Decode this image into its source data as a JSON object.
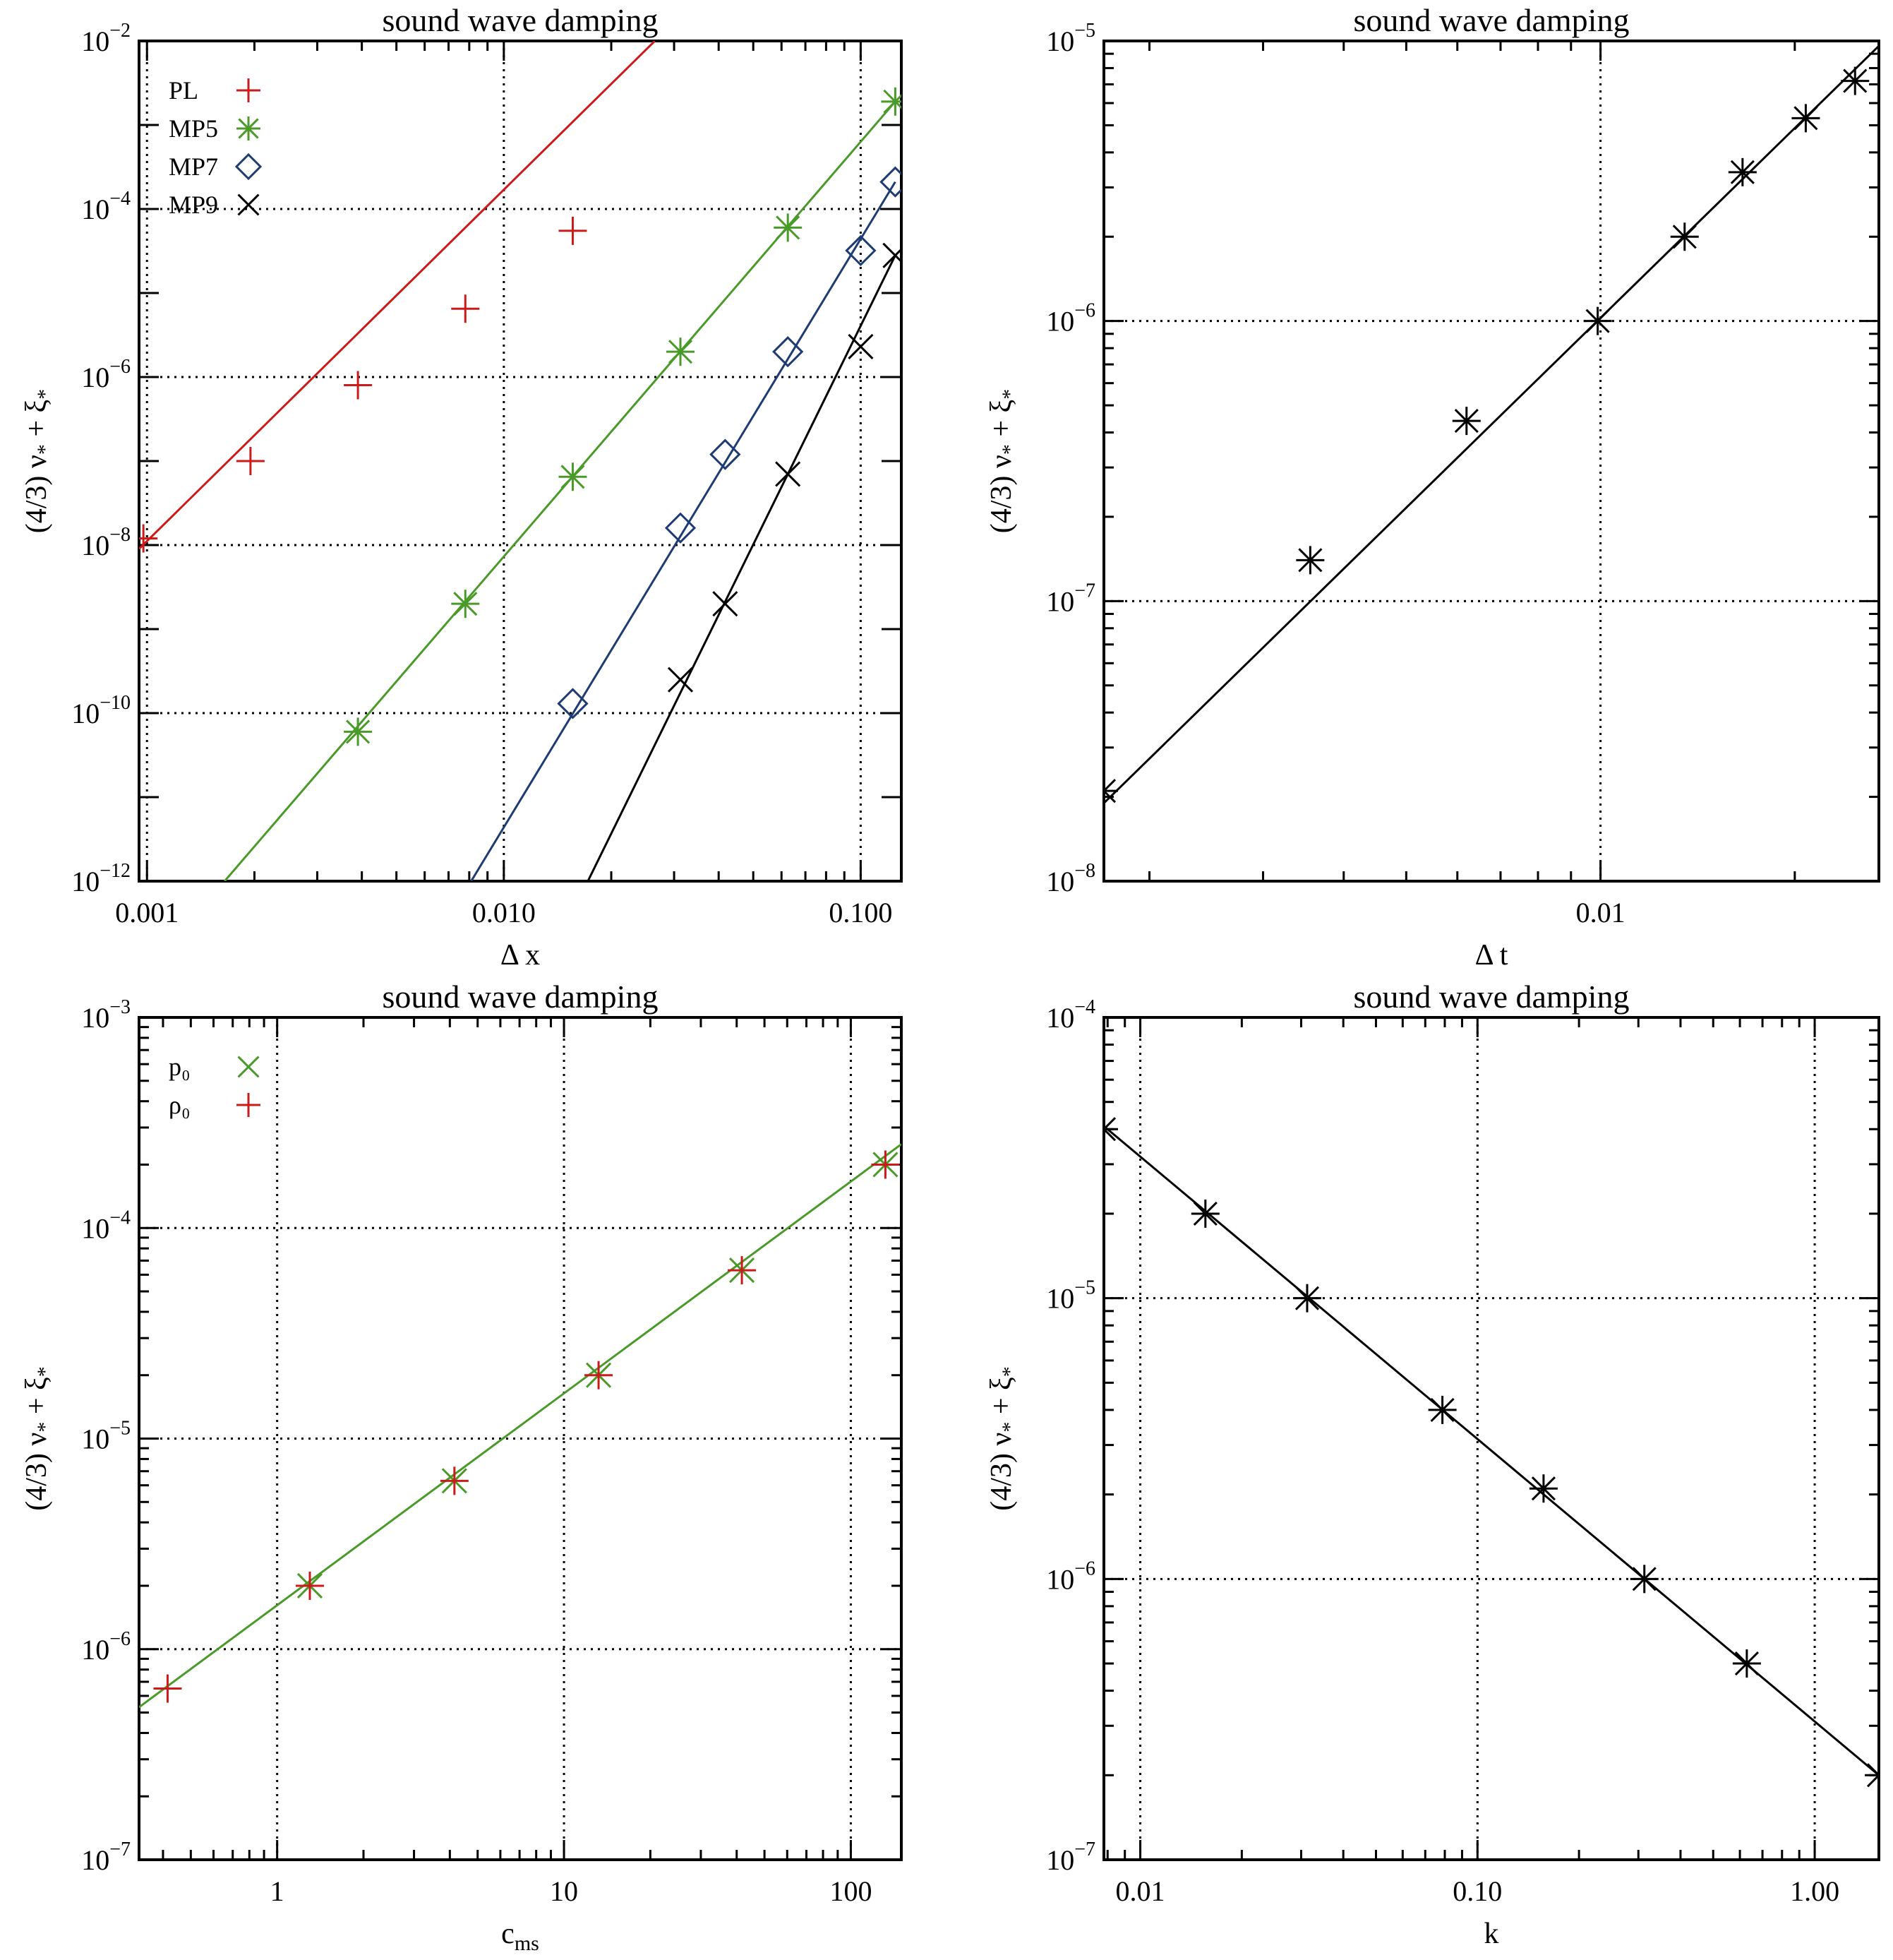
{
  "chart_data": [
    {
      "type": "scatter",
      "title": "sound wave damping",
      "xlabel": "Δ x",
      "ylabel": "(4/3) ν* + ξ*",
      "xscale": "log",
      "yscale": "log",
      "xlim": [
        0.00095,
        0.13
      ],
      "ylim": [
        1e-12,
        0.01
      ],
      "grid": true,
      "legend_position": "top-left",
      "xticks": [
        {
          "v": 0.001,
          "label": "0.001"
        },
        {
          "v": 0.01,
          "label": "0.010"
        },
        {
          "v": 0.1,
          "label": "0.100"
        }
      ],
      "yticks": [
        {
          "v": 0.01,
          "label": "10",
          "exp": "−2"
        },
        {
          "v": 0.0001,
          "label": "10",
          "exp": "−4"
        },
        {
          "v": 1e-06,
          "label": "10",
          "exp": "−6"
        },
        {
          "v": 1e-08,
          "label": "10",
          "exp": "−8"
        },
        {
          "v": 1e-10,
          "label": "10",
          "exp": "−10"
        },
        {
          "v": 1e-12,
          "label": "10",
          "exp": "−12"
        }
      ],
      "series": [
        {
          "name": "PL",
          "marker": "plus",
          "color": "#cc1a1a",
          "x": [
            0.000977,
            0.00195,
            0.0039,
            0.0078,
            0.0156
          ],
          "y": [
            1.2e-08,
            1e-07,
            8e-07,
            6.5e-06,
            5.5e-05
          ],
          "fit": [
            [
              0.00095,
              9e-09
            ],
            [
              0.0265,
              0.01
            ]
          ]
        },
        {
          "name": "MP5",
          "marker": "asterisk",
          "color": "#4a9a2a",
          "x": [
            0.0039,
            0.0078,
            0.0156,
            0.03125,
            0.0625,
            0.125
          ],
          "y": [
            6e-11,
            2e-09,
            6.5e-08,
            2e-06,
            6e-05,
            0.0019
          ],
          "fit": [
            [
              0.00165,
              1e-12
            ],
            [
              0.125,
              0.0019
            ]
          ]
        },
        {
          "name": "MP7",
          "marker": "diamond",
          "color": "#1f3b73",
          "x": [
            0.0156,
            0.03125,
            0.0417,
            0.0625,
            0.1,
            0.125
          ],
          "y": [
            1.3e-10,
            1.6e-08,
            1.2e-07,
            2e-06,
            3.2e-05,
            0.00021
          ],
          "fit": [
            [
              0.0081,
              1e-12
            ],
            [
              0.125,
              0.00021
            ]
          ]
        },
        {
          "name": "MP9",
          "marker": "x",
          "color": "#000000",
          "x": [
            0.03125,
            0.0417,
            0.0625,
            0.1,
            0.125
          ],
          "y": [
            2.5e-10,
            2e-09,
            7e-08,
            2.3e-06,
            2.8e-05
          ],
          "fit": [
            [
              0.0172,
              1e-12
            ],
            [
              0.125,
              2.8e-05
            ]
          ]
        }
      ]
    },
    {
      "type": "scatter",
      "title": "sound wave damping",
      "xlabel": "Δ t",
      "ylabel": "(4/3) ν* + ξ*",
      "xscale": "log",
      "yscale": "log",
      "xlim": [
        0.0017,
        0.027
      ],
      "ylim": [
        1e-08,
        1e-05
      ],
      "grid": true,
      "xticks": [
        {
          "v": 0.01,
          "label": "0.01"
        }
      ],
      "yticks": [
        {
          "v": 1e-05,
          "label": "10",
          "exp": "−5"
        },
        {
          "v": 1e-06,
          "label": "10",
          "exp": "−6"
        },
        {
          "v": 1e-07,
          "label": "10",
          "exp": "−7"
        },
        {
          "v": 1e-08,
          "label": "10",
          "exp": "−8"
        }
      ],
      "series": [
        {
          "marker": "asterisk",
          "color": "#000000",
          "x": [
            0.0017,
            0.00355,
            0.0062,
            0.0099,
            0.0135,
            0.0166,
            0.0208,
            0.0248
          ],
          "y": [
            2.1e-08,
            1.4e-07,
            4.4e-07,
            1e-06,
            2e-06,
            3.4e-06,
            5.3e-06,
            7.2e-06
          ],
          "fit": [
            [
              0.0017,
              1.9e-08
            ],
            [
              0.027,
              9.6e-06
            ]
          ]
        }
      ]
    },
    {
      "type": "scatter",
      "title": "sound wave damping",
      "xlabel": "c_ms",
      "ylabel": "(4/3) ν* + ξ*",
      "xscale": "log",
      "yscale": "log",
      "xlim": [
        0.33,
        150
      ],
      "ylim": [
        1e-07,
        0.001
      ],
      "grid": true,
      "legend_position": "top-left",
      "xticks": [
        {
          "v": 1,
          "label": "1"
        },
        {
          "v": 10,
          "label": "10"
        },
        {
          "v": 100,
          "label": "100"
        }
      ],
      "yticks": [
        {
          "v": 0.001,
          "label": "10",
          "exp": "−3"
        },
        {
          "v": 0.0001,
          "label": "10",
          "exp": "−4"
        },
        {
          "v": 1e-05,
          "label": "10",
          "exp": "−5"
        },
        {
          "v": 1e-06,
          "label": "10",
          "exp": "−6"
        },
        {
          "v": 1e-07,
          "label": "10",
          "exp": "−7"
        }
      ],
      "series": [
        {
          "name": "p₀",
          "marker": "x",
          "color": "#4a9a2a",
          "x": [
            1.3,
            4.15,
            13.2,
            41.7,
            132
          ],
          "y": [
            2e-06,
            6.3e-06,
            2e-05,
            6.3e-05,
            0.0002
          ],
          "fit": [
            [
              0.33,
              5.3e-07
            ],
            [
              150,
              0.00025
            ]
          ]
        },
        {
          "name": "ρ₀",
          "marker": "plus",
          "color": "#cc1a1a",
          "x": [
            0.415,
            1.3,
            4.15,
            13.2,
            41.7,
            132
          ],
          "y": [
            6.5e-07,
            2e-06,
            6.3e-06,
            2e-05,
            6.3e-05,
            0.0002
          ]
        }
      ]
    },
    {
      "type": "scatter",
      "title": "sound wave damping",
      "xlabel": "k",
      "ylabel": "(4/3) ν* + ξ*",
      "xscale": "log",
      "yscale": "log",
      "xlim": [
        0.0078,
        1.55
      ],
      "ylim": [
        1e-07,
        0.0001
      ],
      "grid": true,
      "xticks": [
        {
          "v": 0.01,
          "label": "0.01"
        },
        {
          "v": 0.1,
          "label": "0.10"
        },
        {
          "v": 1.0,
          "label": "1.00"
        }
      ],
      "yticks": [
        {
          "v": 0.0001,
          "label": "10",
          "exp": "−4"
        },
        {
          "v": 1e-05,
          "label": "10",
          "exp": "−5"
        },
        {
          "v": 1e-06,
          "label": "10",
          "exp": "−6"
        },
        {
          "v": 1e-07,
          "label": "10",
          "exp": "−7"
        }
      ],
      "series": [
        {
          "marker": "asterisk",
          "color": "#000000",
          "x": [
            0.0078,
            0.0156,
            0.03125,
            0.0787,
            0.157,
            0.3125,
            0.629,
            1.55
          ],
          "y": [
            4e-05,
            2e-05,
            1e-05,
            4e-06,
            2.1e-06,
            1e-06,
            5e-07,
            2e-07
          ],
          "fit": [
            [
              0.0078,
              4.1e-05
            ],
            [
              1.55,
              2e-07
            ]
          ]
        }
      ]
    }
  ]
}
